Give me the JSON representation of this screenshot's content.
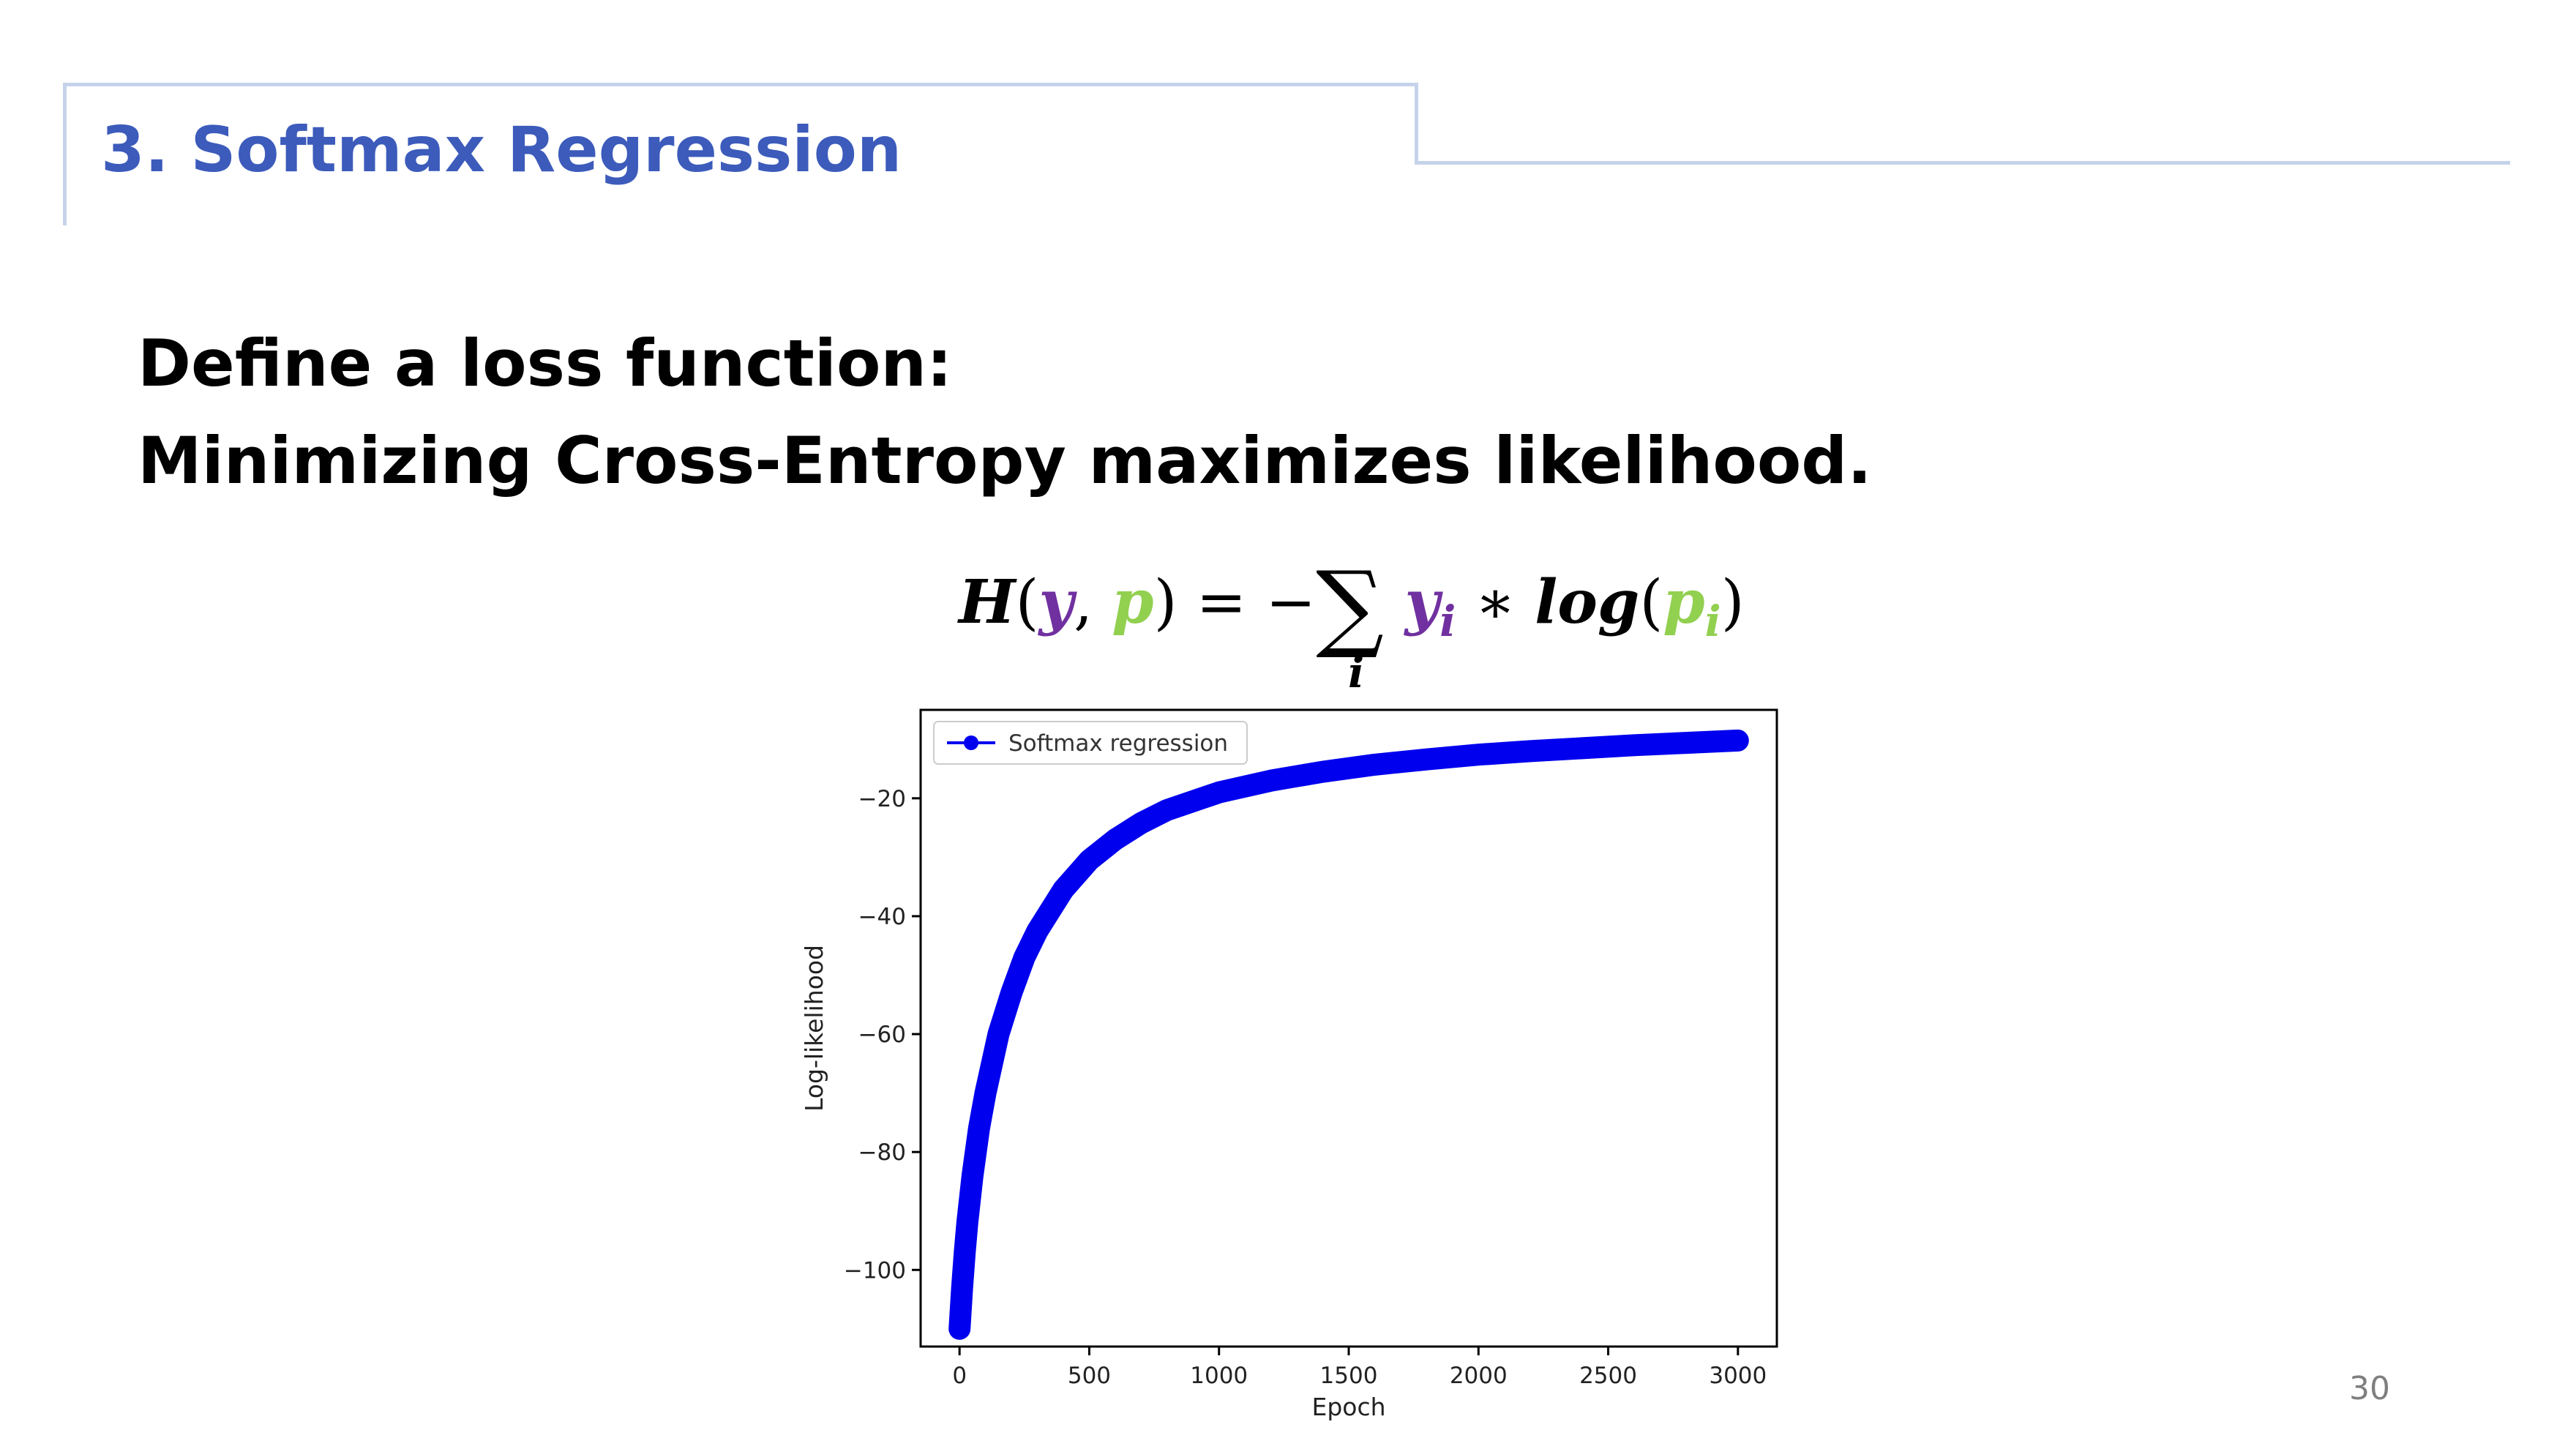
{
  "slide": {
    "title": "3. Softmax Regression",
    "line1": "Define a loss function:",
    "line2": "Minimizing Cross-Entropy maximizes likelihood.",
    "page_number": "30"
  },
  "formula": {
    "H": "H",
    "lparen": "(",
    "y": "y",
    "comma": ", ",
    "p": "p",
    "rparen_eq": ") = −",
    "sigma": "∑",
    "sigma_sub": "i",
    "yi_base": "y",
    "yi_sub": "i",
    "times": " ∗ ",
    "log": "log",
    "lparen2": "(",
    "pi_base": "p",
    "pi_sub": "i",
    "rparen2": ")"
  },
  "colors": {
    "title": "#3c5bbb",
    "frame": "#c5d3ea",
    "y_var": "#7030a0",
    "p_var": "#92d050",
    "series": "#0000ee"
  },
  "chart_data": {
    "type": "line",
    "xlabel": "Epoch",
    "ylabel": "Log-likelihood",
    "xlim": [
      -150,
      3150
    ],
    "ylim": [
      -113,
      -5
    ],
    "xticks": [
      0,
      500,
      1000,
      1500,
      2000,
      2500,
      3000
    ],
    "yticks": [
      -20,
      -40,
      -60,
      -80,
      -100
    ],
    "xtick_labels": [
      "0",
      "500",
      "1000",
      "1500",
      "2000",
      "2500",
      "3000"
    ],
    "ytick_labels": [
      "−20",
      "−40",
      "−60",
      "−80",
      "−100"
    ],
    "legend": {
      "position": "upper-left"
    },
    "series": [
      {
        "name": "Softmax regression",
        "marker": "o",
        "x": [
          0,
          10,
          20,
          30,
          50,
          75,
          100,
          150,
          200,
          250,
          300,
          400,
          500,
          600,
          700,
          800,
          1000,
          1200,
          1400,
          1600,
          1800,
          2000,
          2200,
          2400,
          2600,
          2800,
          3000
        ],
        "y": [
          -110,
          -103,
          -97,
          -92,
          -84,
          -76,
          -70,
          -60,
          -53,
          -47,
          -42.5,
          -35.5,
          -30.5,
          -27,
          -24.2,
          -22,
          -19,
          -17,
          -15.5,
          -14.3,
          -13.4,
          -12.6,
          -12,
          -11.5,
          -11,
          -10.6,
          -10.2
        ]
      }
    ]
  }
}
